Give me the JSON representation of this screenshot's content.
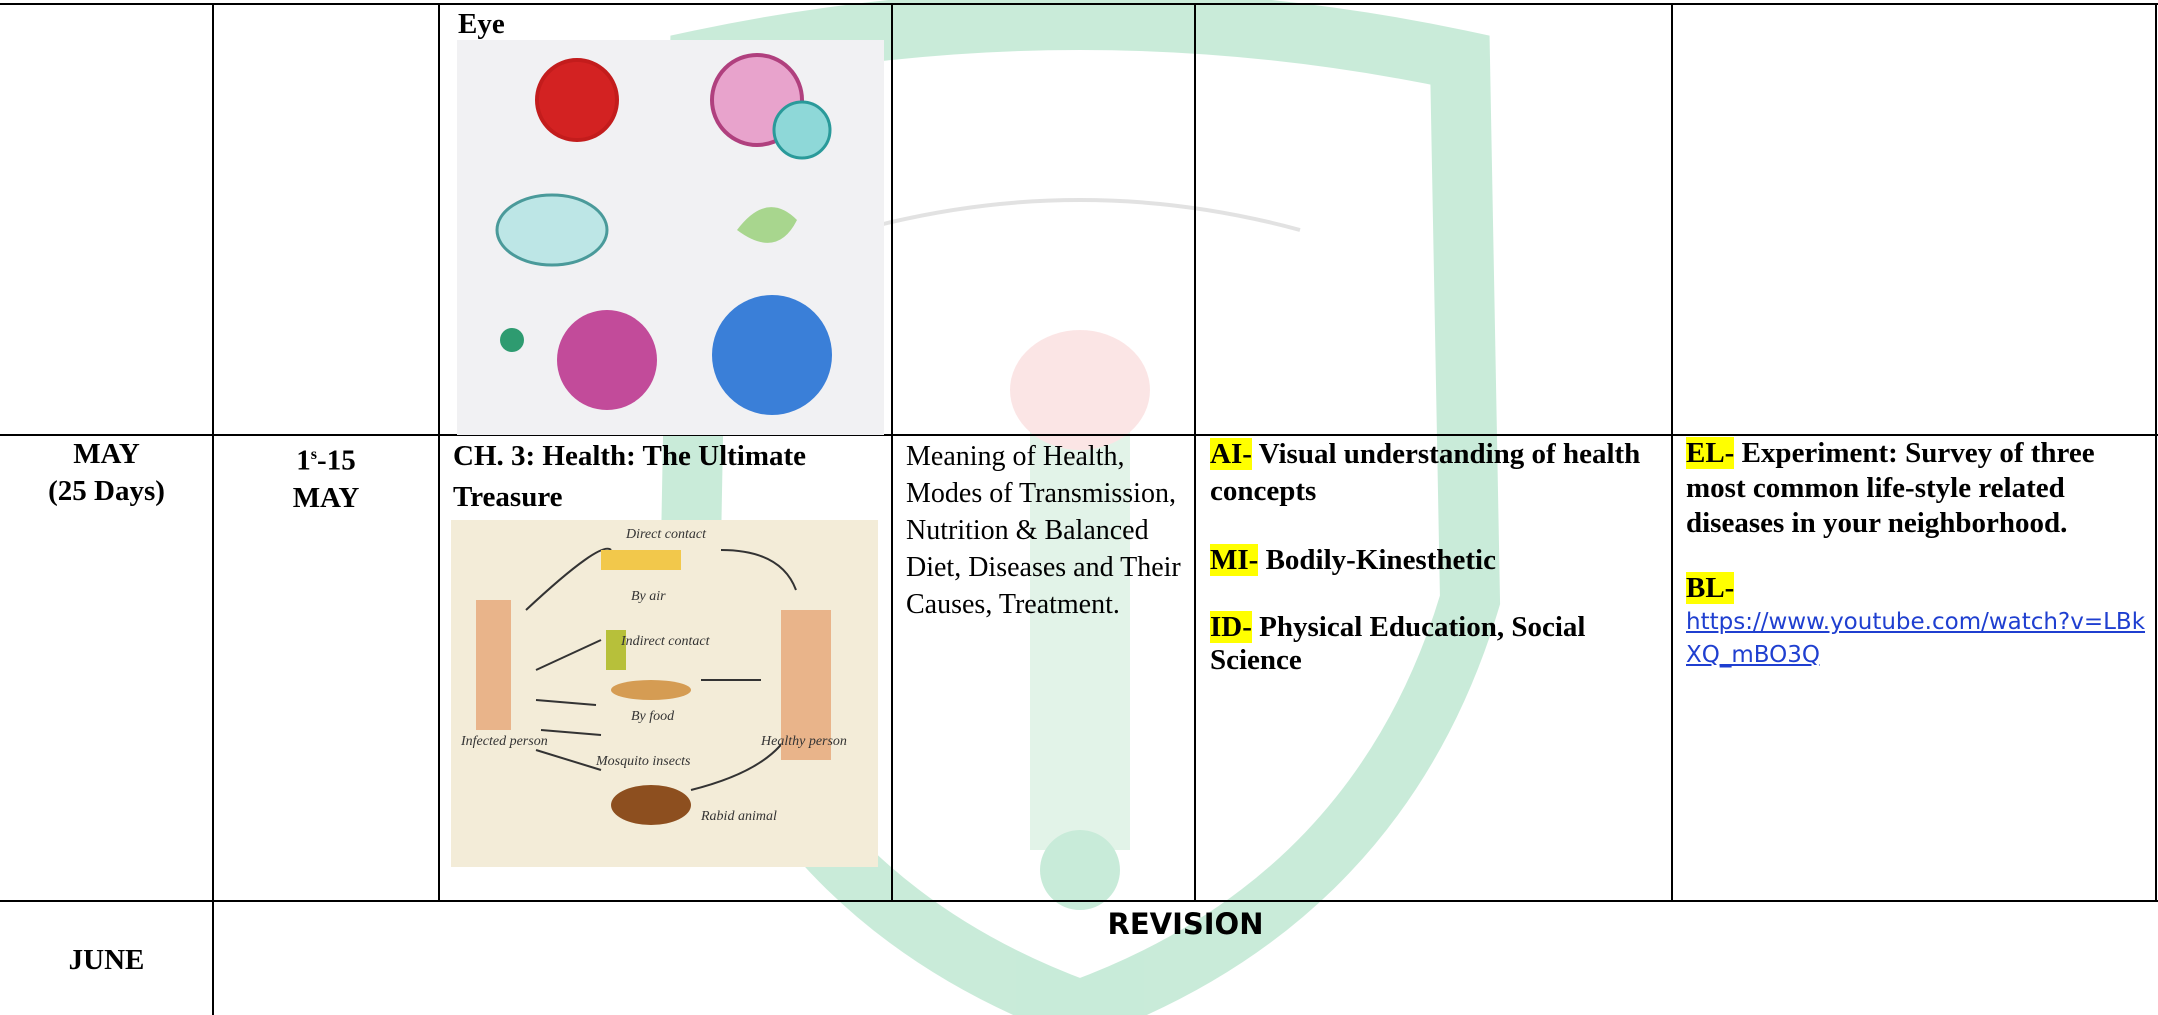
{
  "table": {
    "rows": [
      {
        "cells": [
          {
            "text": ""
          },
          {
            "text": ""
          },
          {
            "caption": "Eye"
          },
          {
            "text": ""
          },
          {
            "text": ""
          },
          {
            "text": ""
          }
        ]
      },
      {
        "month": {
          "name": "MAY",
          "days": "(25 Days)"
        },
        "dates": {
          "start": "1",
          "sup": "s",
          "end": "-15",
          "month": "MAY"
        },
        "chapter": {
          "title": "CH. 3: Health: The Ultimate Treasure",
          "figure_labels": {
            "direct": "Direct contact",
            "air": "By air",
            "indirect": "Indirect contact",
            "food": "By food",
            "mosquito": "Mosquito insects",
            "infected": "Infected person",
            "healthy": "Healthy person",
            "animal": "Rabid animal"
          }
        },
        "topics": "Meaning of Health, Modes of Transmission, Nutrition & Balanced Diet, Diseases and Their Causes, Treatment.",
        "strategies": [
          {
            "tag": "AI-",
            "text": "Visual understanding of health concepts"
          },
          {
            "tag": "MI-",
            "text": "Bodily-Kinesthetic"
          },
          {
            "tag": "ID-",
            "text": "Physical Education, Social Science"
          }
        ],
        "activities": [
          {
            "tag": "EL-",
            "text": "Experiment: Survey of three most common life-style related diseases in your neighborhood."
          },
          {
            "tag": "BL-",
            "link": "https://www.youtube.com/watch?v=LBkXQ_mBO3Q"
          }
        ]
      },
      {
        "month": "JUNE",
        "content": "REVISION"
      }
    ]
  }
}
